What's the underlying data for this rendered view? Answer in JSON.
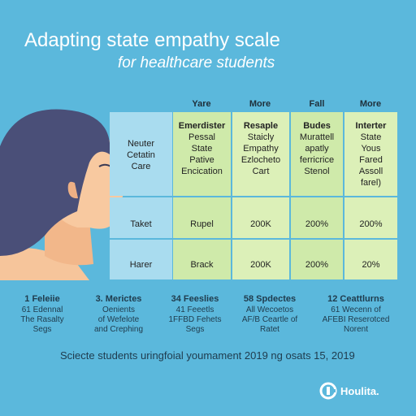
{
  "title": "Adapting state empathy scale",
  "subtitle": "for healthcare students",
  "columns": [
    "Yare",
    "More",
    "Fall",
    "More"
  ],
  "rows": [
    {
      "label": "Neuter\nCetatin\nCare",
      "cells": [
        {
          "head": "Emerdister",
          "body": "Pessal\nState\nPative\nEncication"
        },
        {
          "head": "Resaple",
          "body": "Staicly\nEmpathy\nEzlocheto\nCart"
        },
        {
          "head": "Budes",
          "body": "Murattell\napatly\nferricrice\nStenol"
        },
        {
          "head": "Interter",
          "body": "State\nYous\nFared\nAssoll\nfarel)"
        }
      ]
    },
    {
      "label": "Taket",
      "cells": [
        {
          "body": "Rupel"
        },
        {
          "body": "200K"
        },
        {
          "body": "200%"
        },
        {
          "body": "200%"
        }
      ]
    },
    {
      "label": "Harer",
      "cells": [
        {
          "body": "Brack"
        },
        {
          "body": "200K"
        },
        {
          "body": "200%"
        },
        {
          "body": "20%"
        }
      ]
    }
  ],
  "stats": [
    {
      "head": "1 Feleiie",
      "body": "61 Edennal\nThe Rasalty\nSegs"
    },
    {
      "head": "3. Merictes",
      "body": "Oenients\nof Wefelote\nand Crephing"
    },
    {
      "head": "34 Feeslies",
      "body": "41 Feeetls\n1FFBD Fehets\nSegs"
    },
    {
      "head": "58 Spdectes",
      "body": "All Wecoetos\nAF/B Ceartle of\nRatet"
    },
    {
      "head": "12 Ceattlurns",
      "body": "61 Wecenn of\nAFEBI Reserotced\nNorent"
    }
  ],
  "footer": "Sciecte students uringfoial youmament 2019 ng osats 15, 2019",
  "logo": "Houlita."
}
